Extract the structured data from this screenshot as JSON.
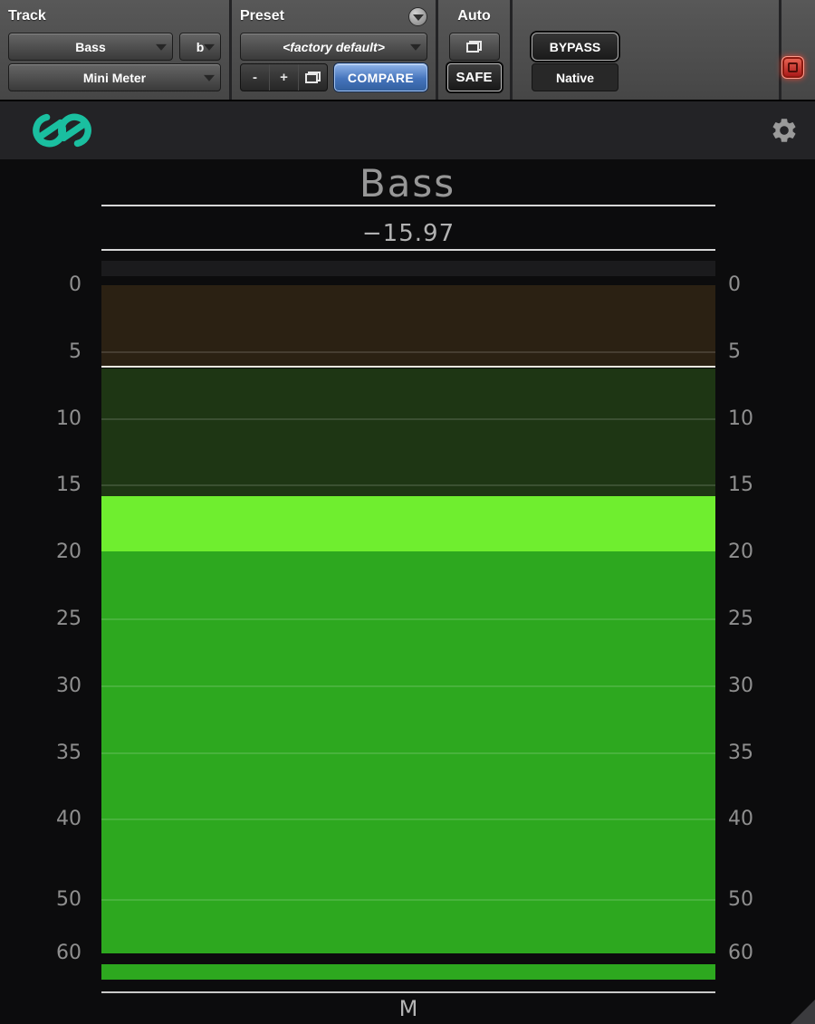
{
  "header": {
    "track_label": "Track",
    "track_name": "Bass",
    "track_variant": "b",
    "plugin_name": "Mini Meter",
    "preset_label": "Preset",
    "preset_value": "<factory default>",
    "minus_label": "-",
    "plus_label": "+",
    "compare_label": "COMPARE",
    "auto_label": "Auto",
    "safe_label": "SAFE",
    "bypass_label": "BYPASS",
    "arch_label": "Native"
  },
  "brand": {
    "logo_icon": "infinity-loops-logo",
    "logo_color": "#1abfa0",
    "settings_icon": "gear-icon"
  },
  "meter": {
    "title": "Bass",
    "readout": "−15.97",
    "channel_label": "M",
    "scale_ticks": [
      "0",
      "5",
      "10",
      "15",
      "20",
      "25",
      "30",
      "35",
      "40",
      "50",
      "60"
    ],
    "headroom_color": "#1b1b1d",
    "bottom_bar_color": "#2da81f",
    "segments": [
      {
        "name": "loud-zone",
        "from": 0,
        "to": 6.0,
        "color": "#2b2113"
      },
      {
        "name": "max-indicator",
        "from": 6.0,
        "to": 6.2,
        "color": "#e9e9df"
      },
      {
        "name": "upper-zone",
        "from": 6.2,
        "to": 15.8,
        "color": "#1e3614"
      },
      {
        "name": "short-term-zone",
        "from": 15.8,
        "to": 19.9,
        "color": "#6fee2f"
      },
      {
        "name": "level-bar",
        "from": 19.9,
        "to": 60,
        "color": "#2da81f"
      }
    ]
  }
}
